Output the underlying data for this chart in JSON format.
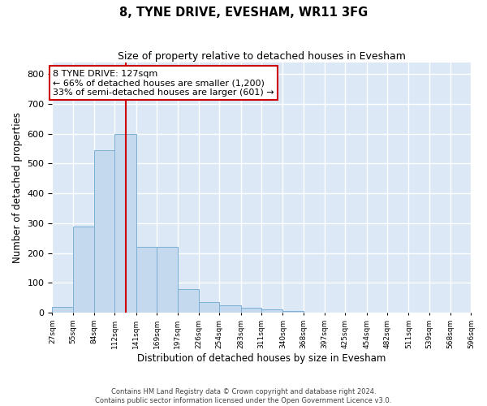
{
  "title": "8, TYNE DRIVE, EVESHAM, WR11 3FG",
  "subtitle": "Size of property relative to detached houses in Evesham",
  "xlabel": "Distribution of detached houses by size in Evesham",
  "ylabel": "Number of detached properties",
  "bar_color": "#c5d9ee",
  "bar_edge_color": "#7aafd4",
  "background_color": "#dce8f5",
  "grid_color": "#ffffff",
  "vline_color": "#cc0000",
  "vline_x": 127,
  "annotation_line1": "8 TYNE DRIVE: 127sqm",
  "annotation_line2": "← 66% of detached houses are smaller (1,200)",
  "annotation_line3": "33% of semi-detached houses are larger (601) →",
  "annotation_box_color": "#ffffff",
  "annotation_box_edge": "#cc0000",
  "bin_edges": [
    27,
    55,
    84,
    112,
    141,
    169,
    197,
    226,
    254,
    283,
    311,
    340,
    368,
    397,
    425,
    454,
    482,
    511,
    539,
    568,
    596
  ],
  "bar_heights": [
    20,
    290,
    545,
    600,
    220,
    220,
    80,
    35,
    25,
    15,
    10,
    5,
    0,
    0,
    0,
    0,
    0,
    0,
    0,
    0
  ],
  "ylim": [
    0,
    840
  ],
  "yticks": [
    0,
    100,
    200,
    300,
    400,
    500,
    600,
    700,
    800
  ],
  "footnote_line1": "Contains HM Land Registry data © Crown copyright and database right 2024.",
  "footnote_line2": "Contains public sector information licensed under the Open Government Licence v3.0."
}
